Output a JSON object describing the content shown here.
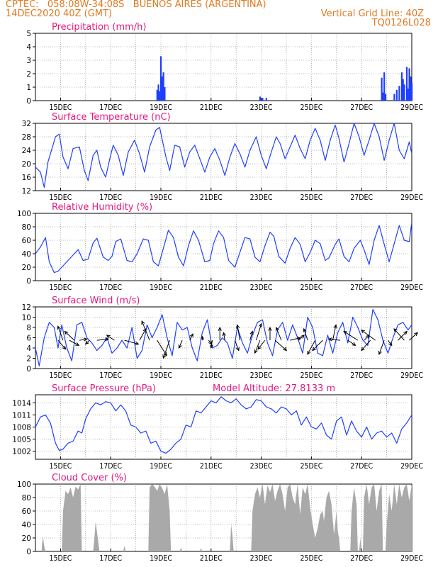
{
  "header": {
    "line1": "CPTEC:   058:08W-34:08S   BUENOS AIRES (ARGENTINA)",
    "line2_left": "14DEC2020 40Z (GMT)",
    "line2_right": "Vertical Grid Line: 40Z",
    "line3_right": "TQ0126L028"
  },
  "colors": {
    "header": "#e07a1f",
    "panel_title": "#e6197f",
    "series": "#1f3fff",
    "cloud": "#a9a9a9",
    "wind_arrow": "#000000",
    "frame": "#000000",
    "grid": "#7f7f7f"
  },
  "x_axis": {
    "days": [
      14,
      29
    ],
    "tick_labels": [
      "15DEC",
      "17DEC",
      "19DEC",
      "21DEC",
      "23DEC",
      "25DEC",
      "27DEC",
      "29DEC"
    ],
    "tick_days": [
      15,
      17,
      19,
      21,
      23,
      25,
      27,
      29
    ],
    "grid_days": [
      15,
      16,
      17,
      18,
      19,
      20,
      21,
      22,
      23,
      24,
      25,
      26,
      27,
      28
    ]
  },
  "chart_data": [
    {
      "id": "precip",
      "type": "bar",
      "title": "Precipitation (mm/h)",
      "ylim": [
        0,
        5
      ],
      "yticks": [
        0,
        1,
        2,
        3,
        4,
        5
      ],
      "x": [
        18.85,
        18.9,
        18.95,
        19.0,
        19.05,
        19.1,
        19.15,
        22.95,
        23.05,
        23.2,
        27.8,
        27.85,
        27.9,
        27.95,
        28.3,
        28.4,
        28.5,
        28.6,
        28.65,
        28.7,
        28.8,
        28.85,
        28.9,
        28.95,
        29.0
      ],
      "values": [
        0.8,
        1.2,
        0.7,
        3.3,
        1.8,
        2.1,
        1.0,
        0.3,
        0.2,
        0.2,
        1.7,
        0.6,
        2.1,
        0.5,
        0.5,
        0.8,
        1.1,
        2.1,
        1.6,
        1.2,
        2.5,
        0.9,
        2.4,
        1.8,
        1.3
      ]
    },
    {
      "id": "temp",
      "type": "line",
      "title": "Surface Temperature (nC)",
      "ylim": [
        12,
        32
      ],
      "yticks": [
        12,
        16,
        20,
        24,
        28,
        32
      ],
      "x": [
        14.0,
        14.2,
        14.35,
        14.5,
        14.8,
        14.95,
        15.1,
        15.3,
        15.5,
        15.75,
        15.95,
        16.1,
        16.3,
        16.45,
        16.6,
        16.8,
        16.95,
        17.1,
        17.3,
        17.5,
        17.7,
        17.95,
        18.15,
        18.35,
        18.55,
        18.8,
        18.95,
        19.2,
        19.35,
        19.55,
        19.75,
        19.95,
        20.15,
        20.35,
        20.55,
        20.75,
        20.95,
        21.15,
        21.35,
        21.55,
        21.75,
        21.95,
        22.15,
        22.35,
        22.55,
        22.8,
        23.0,
        23.2,
        23.4,
        23.6,
        23.75,
        23.95,
        24.15,
        24.35,
        24.55,
        24.75,
        24.95,
        25.15,
        25.35,
        25.55,
        25.75,
        25.95,
        26.1,
        26.3,
        26.5,
        26.7,
        26.9,
        27.1,
        27.3,
        27.5,
        27.7,
        27.9,
        28.1,
        28.3,
        28.5,
        28.7,
        28.9,
        29.0
      ],
      "values": [
        19.0,
        17.5,
        13.0,
        20.5,
        28.0,
        28.8,
        22.0,
        18.5,
        24.5,
        25.0,
        18.0,
        15.0,
        22.5,
        24.0,
        19.0,
        16.0,
        21.0,
        25.5,
        22.5,
        16.5,
        23.5,
        27.0,
        23.0,
        17.5,
        25.0,
        30.0,
        30.8,
        22.0,
        18.0,
        25.5,
        25.0,
        19.0,
        23.5,
        25.5,
        21.5,
        17.5,
        22.0,
        24.5,
        21.0,
        16.5,
        22.0,
        26.0,
        23.0,
        19.0,
        24.0,
        28.0,
        22.5,
        18.5,
        23.5,
        28.0,
        26.0,
        21.5,
        25.0,
        28.5,
        24.5,
        21.5,
        27.0,
        30.5,
        27.0,
        21.0,
        27.0,
        31.5,
        27.5,
        20.5,
        26.0,
        32.0,
        28.0,
        22.5,
        27.0,
        32.0,
        28.0,
        21.0,
        27.0,
        32.0,
        24.0,
        21.5,
        26.5,
        23.0
      ]
    },
    {
      "id": "rh",
      "type": "line",
      "title": "Relative Humidity (%)",
      "ylim": [
        0,
        100
      ],
      "yticks": [
        0,
        20,
        40,
        60,
        80,
        100
      ],
      "x": [
        14.0,
        14.2,
        14.4,
        14.55,
        14.75,
        14.9,
        15.1,
        15.3,
        15.5,
        15.7,
        15.9,
        16.1,
        16.3,
        16.45,
        16.7,
        16.9,
        17.05,
        17.2,
        17.4,
        17.65,
        17.85,
        18.05,
        18.3,
        18.5,
        18.7,
        18.9,
        19.1,
        19.3,
        19.5,
        19.7,
        19.9,
        20.1,
        20.3,
        20.5,
        20.75,
        20.95,
        21.1,
        21.3,
        21.5,
        21.7,
        21.95,
        22.15,
        22.35,
        22.55,
        22.75,
        22.95,
        23.15,
        23.35,
        23.5,
        23.7,
        23.95,
        24.15,
        24.35,
        24.55,
        24.75,
        24.95,
        25.15,
        25.35,
        25.55,
        25.7,
        25.95,
        26.1,
        26.3,
        26.5,
        26.7,
        26.95,
        27.1,
        27.3,
        27.5,
        27.7,
        27.9,
        28.1,
        28.3,
        28.5,
        28.7,
        28.9,
        29.0
      ],
      "values": [
        40.0,
        50.0,
        64.0,
        28.0,
        12.0,
        14.0,
        22.0,
        30.0,
        38.0,
        46.0,
        30.0,
        32.0,
        56.0,
        63.0,
        35.0,
        30.0,
        36.0,
        58.0,
        62.0,
        30.0,
        28.0,
        40.0,
        62.0,
        60.0,
        28.0,
        22.0,
        48.0,
        75.0,
        64.0,
        35.0,
        22.0,
        52.0,
        74.0,
        60.0,
        28.0,
        30.0,
        55.0,
        74.0,
        64.0,
        30.0,
        20.0,
        42.0,
        64.0,
        62.0,
        35.0,
        28.0,
        52.0,
        72.0,
        66.0,
        36.0,
        26.0,
        48.0,
        64.0,
        54.0,
        28.0,
        42.0,
        60.0,
        55.0,
        30.0,
        34.0,
        54.0,
        62.0,
        36.0,
        28.0,
        48.0,
        60.0,
        46.0,
        24.0,
        60.0,
        82.0,
        54.0,
        28.0,
        55.0,
        82.0,
        60.0,
        58.0,
        87.0
      ]
    },
    {
      "id": "wind",
      "type": "line",
      "title": "Surface Wind (m/s)",
      "ylim": [
        0,
        12
      ],
      "yticks": [
        0,
        2,
        4,
        6,
        8,
        10,
        12
      ],
      "x": [
        14.0,
        14.15,
        14.35,
        14.55,
        14.75,
        14.9,
        15.05,
        15.25,
        15.45,
        15.65,
        15.85,
        16.05,
        16.25,
        16.45,
        16.65,
        16.85,
        17.05,
        17.25,
        17.45,
        17.65,
        17.85,
        18.05,
        18.25,
        18.45,
        18.65,
        18.85,
        19.05,
        19.25,
        19.45,
        19.65,
        19.85,
        20.05,
        20.25,
        20.45,
        20.65,
        20.85,
        21.05,
        21.25,
        21.45,
        21.65,
        21.85,
        22.05,
        22.25,
        22.45,
        22.65,
        22.85,
        23.05,
        23.25,
        23.45,
        23.65,
        23.85,
        24.05,
        24.25,
        24.45,
        24.65,
        24.85,
        25.05,
        25.25,
        25.45,
        25.65,
        25.85,
        26.05,
        26.25,
        26.45,
        26.65,
        26.85,
        27.05,
        27.25,
        27.45,
        27.65,
        27.85,
        28.05,
        28.25,
        28.45,
        28.65,
        28.85,
        29.0
      ],
      "values": [
        4.0,
        0.5,
        6.0,
        9.0,
        8.0,
        4.0,
        8.5,
        4.0,
        1.5,
        8.5,
        9.0,
        6.0,
        5.0,
        3.5,
        4.5,
        6.0,
        3.0,
        4.0,
        5.5,
        4.0,
        8.0,
        2.0,
        3.5,
        8.5,
        6.0,
        8.0,
        10.5,
        6.0,
        2.5,
        9.0,
        7.5,
        8.0,
        4.0,
        1.5,
        7.0,
        9.5,
        4.0,
        4.5,
        6.0,
        5.0,
        2.0,
        8.0,
        5.0,
        3.0,
        6.5,
        9.0,
        9.5,
        5.0,
        2.5,
        7.5,
        9.0,
        5.5,
        8.5,
        6.0,
        3.0,
        10.0,
        8.0,
        3.0,
        2.5,
        6.5,
        3.0,
        7.0,
        9.0,
        5.0,
        10.0,
        8.0,
        5.5,
        4.5,
        11.5,
        9.5,
        5.5,
        3.0,
        6.0,
        8.5,
        9.0,
        7.5,
        8.5
      ],
      "arrows": {
        "x": [
          14.9,
          15.1,
          15.35,
          15.55,
          15.75,
          16.15,
          16.45,
          17.15,
          17.55,
          18.15,
          18.55,
          18.85,
          19.35,
          19.85,
          20.15,
          20.65,
          20.9,
          21.05,
          21.35,
          21.55,
          21.95,
          22.15,
          22.55,
          22.8,
          22.95,
          23.15,
          23.35,
          23.55,
          23.8,
          24.15,
          24.5,
          24.85,
          25.15,
          25.45,
          25.85,
          26.15,
          26.45,
          26.85,
          27.1,
          27.35,
          27.55,
          27.9,
          28.05,
          28.45,
          28.7,
          28.9
        ],
        "u": [
          1.2,
          -0.8,
          1.5,
          -1.5,
          1.2,
          -0.6,
          1.8,
          -1.2,
          2.2,
          1.0,
          -1.2,
          1.5,
          -1.0,
          -0.5,
          0.5,
          0.0,
          0.5,
          -0.2,
          0.0,
          -0.2,
          0.6,
          -0.4,
          0.4,
          0.8,
          -0.8,
          -1.1,
          0.0,
          1.8,
          -0.8,
          1.6,
          0.8,
          -0.6,
          -1.2,
          -1.6,
          0.5,
          -1.8,
          1.2,
          -2.2,
          0.8,
          -1.4,
          -2.2,
          -0.8,
          0.6,
          1.4,
          -1.6,
          1.3
        ],
        "v": [
          -1.4,
          2.2,
          -0.8,
          1.4,
          0.2,
          -0.6,
          0.2,
          0.8,
          -0.6,
          1.8,
          3.0,
          -2.4,
          -2.8,
          -1.2,
          1.0,
          0.6,
          -0.6,
          -1.2,
          2.0,
          1.2,
          -1.6,
          2.4,
          1.4,
          2.6,
          -2.0,
          -1.4,
          2.0,
          -1.6,
          2.0,
          0.4,
          0.8,
          1.8,
          -2.2,
          -1.6,
          2.4,
          0.2,
          -0.8,
          1.4,
          0.8,
          -1.6,
          1.6,
          -2.2,
          -0.8,
          1.4,
          1.8,
          1.2
        ]
      }
    },
    {
      "id": "pressure",
      "type": "line",
      "title": "Surface Pressure (hPa)",
      "annotation": "Model Altitude: 27.8133 m",
      "ylim": [
        1000,
        1016
      ],
      "yticks": [
        1002,
        1005,
        1008,
        1011,
        1014
      ],
      "x": [
        14.0,
        14.2,
        14.4,
        14.6,
        14.8,
        14.95,
        15.1,
        15.3,
        15.5,
        15.7,
        15.85,
        16.0,
        16.2,
        16.4,
        16.6,
        16.8,
        17.0,
        17.2,
        17.4,
        17.6,
        17.8,
        18.0,
        18.2,
        18.4,
        18.6,
        18.8,
        19.0,
        19.2,
        19.4,
        19.6,
        19.8,
        20.0,
        20.2,
        20.4,
        20.6,
        20.8,
        21.0,
        21.2,
        21.4,
        21.6,
        21.8,
        22.0,
        22.2,
        22.4,
        22.6,
        22.8,
        23.0,
        23.2,
        23.4,
        23.6,
        23.8,
        24.0,
        24.2,
        24.4,
        24.6,
        24.8,
        25.0,
        25.2,
        25.4,
        25.6,
        25.8,
        26.0,
        26.2,
        26.4,
        26.6,
        26.8,
        27.0,
        27.2,
        27.4,
        27.6,
        27.8,
        28.0,
        28.2,
        28.4,
        28.6,
        28.8,
        29.0
      ],
      "values": [
        1008.0,
        1010.5,
        1011.0,
        1009.0,
        1004.0,
        1002.2,
        1002.5,
        1004.0,
        1004.5,
        1007.0,
        1006.5,
        1010.0,
        1012.5,
        1014.0,
        1013.5,
        1014.3,
        1014.0,
        1012.0,
        1013.5,
        1012.0,
        1008.5,
        1008.0,
        1006.5,
        1007.0,
        1004.0,
        1004.5,
        1002.0,
        1001.5,
        1002.5,
        1004.0,
        1005.0,
        1008.5,
        1008.0,
        1012.0,
        1011.5,
        1013.0,
        1014.5,
        1014.0,
        1015.5,
        1014.5,
        1014.0,
        1015.0,
        1013.5,
        1012.5,
        1013.0,
        1014.8,
        1014.5,
        1013.0,
        1012.5,
        1011.5,
        1013.0,
        1012.5,
        1011.0,
        1012.0,
        1008.5,
        1010.5,
        1008.0,
        1007.5,
        1009.0,
        1006.0,
        1005.0,
        1009.5,
        1010.5,
        1006.0,
        1009.5,
        1007.0,
        1005.5,
        1008.0,
        1005.0,
        1006.5,
        1007.0,
        1005.5,
        1006.5,
        1004.0,
        1007.5,
        1009.0,
        1011.0
      ]
    },
    {
      "id": "cloud",
      "type": "area",
      "title": "Cloud Cover (%)",
      "ylim": [
        0,
        100
      ],
      "yticks": [
        0,
        20,
        40,
        60,
        80,
        100
      ],
      "spans": [
        {
          "x": [
            14.25,
            14.3,
            14.35,
            14.4
          ],
          "values": [
            6,
            22,
            8,
            0
          ]
        },
        {
          "x": [
            15.05,
            15.1,
            15.2,
            15.3,
            15.4,
            15.5,
            15.6,
            15.7,
            15.8,
            15.85
          ],
          "values": [
            0,
            60,
            90,
            85,
            95,
            80,
            96,
            92,
            100,
            0
          ]
        },
        {
          "x": [
            16.3,
            16.35,
            16.4,
            16.45,
            16.5,
            16.55
          ],
          "values": [
            0,
            20,
            45,
            30,
            15,
            0
          ]
        },
        {
          "x": [
            17.5,
            17.55,
            17.6
          ],
          "values": [
            0,
            8,
            0
          ]
        },
        {
          "x": [
            18.5,
            18.55,
            18.65,
            18.75,
            18.85,
            18.95,
            19.05,
            19.15,
            19.25,
            19.35,
            19.4
          ],
          "values": [
            0,
            95,
            100,
            96,
            90,
            100,
            94,
            85,
            100,
            60,
            0
          ]
        },
        {
          "x": [
            19.75,
            19.8,
            19.85
          ],
          "values": [
            0,
            6,
            0
          ]
        },
        {
          "x": [
            20.55,
            20.6,
            20.65
          ],
          "values": [
            0,
            5,
            0
          ]
        },
        {
          "x": [
            21.75,
            21.8,
            21.85,
            21.9
          ],
          "values": [
            0,
            40,
            25,
            0
          ]
        },
        {
          "x": [
            22.6,
            22.65,
            22.75,
            22.85,
            22.95,
            23.05,
            23.15,
            23.25,
            23.35,
            23.45,
            23.55,
            23.65,
            23.75,
            23.85,
            23.95,
            24.05,
            24.15,
            24.25,
            24.35,
            24.45,
            24.55,
            24.65,
            24.75,
            24.85,
            24.95,
            25.05,
            25.15,
            25.25,
            25.35,
            25.45,
            25.5,
            25.6,
            25.7,
            25.8,
            25.9,
            26.0,
            26.05,
            26.1,
            26.15
          ],
          "values": [
            0,
            60,
            85,
            95,
            80,
            100,
            70,
            98,
            88,
            100,
            75,
            90,
            100,
            85,
            60,
            95,
            100,
            80,
            70,
            100,
            55,
            95,
            85,
            100,
            65,
            40,
            20,
            35,
            55,
            60,
            45,
            80,
            90,
            70,
            25,
            60,
            30,
            20,
            0
          ]
        },
        {
          "x": [
            26.55,
            26.6,
            26.7,
            26.8,
            26.85
          ],
          "values": [
            0,
            60,
            95,
            70,
            0
          ]
        },
        {
          "x": [
            26.9,
            26.95,
            27.0
          ],
          "values": [
            0,
            20,
            0
          ]
        },
        {
          "x": [
            27.05,
            27.1,
            27.2,
            27.3,
            27.4,
            27.5,
            27.6,
            27.7,
            27.8,
            27.85
          ],
          "values": [
            0,
            80,
            100,
            70,
            95,
            100,
            60,
            90,
            100,
            0
          ]
        },
        {
          "x": [
            27.95,
            28.0,
            28.1,
            28.2,
            28.3,
            28.4,
            28.5,
            28.6,
            28.7,
            28.8,
            28.9,
            29.0
          ],
          "values": [
            0,
            40,
            85,
            60,
            100,
            70,
            100,
            80,
            95,
            100,
            75,
            100
          ]
        }
      ]
    }
  ]
}
